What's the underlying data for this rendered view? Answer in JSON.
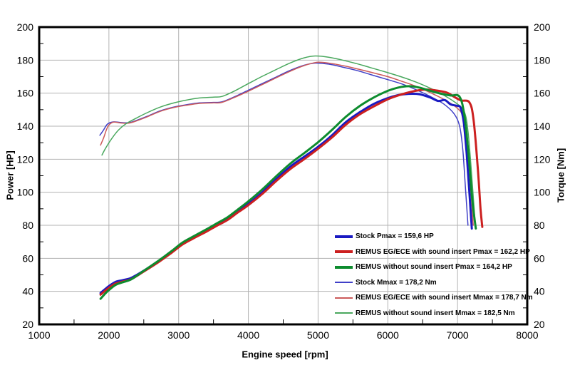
{
  "chart_data": {
    "type": "line",
    "title": "",
    "xlabel": "Engine speed [rpm]",
    "ylabel_left": "Power [HP]",
    "ylabel_right": "Torque [Nm]",
    "xlim": [
      1000,
      8000
    ],
    "ylim": [
      20,
      200
    ],
    "x_ticks": [
      1000,
      2000,
      3000,
      4000,
      5000,
      6000,
      7000,
      8000
    ],
    "y_ticks": [
      20,
      40,
      60,
      80,
      100,
      120,
      140,
      160,
      180,
      200
    ],
    "x_minor_step": 500,
    "y_minor_step": 10,
    "grid": true,
    "grid_color": "#b3b3b3",
    "border_color": "#000000",
    "legend_position": "inside-bottom-right",
    "series": [
      {
        "name": "Stock Pmax = 159,6 HP",
        "kind": "power",
        "unit": "HP",
        "color": "#1a1ac2",
        "width": 3,
        "points": [
          [
            1880,
            39
          ],
          [
            1950,
            41.5
          ],
          [
            2020,
            43.8
          ],
          [
            2100,
            45.8
          ],
          [
            2200,
            46.8
          ],
          [
            2320,
            48.2
          ],
          [
            2500,
            52.5
          ],
          [
            2700,
            58
          ],
          [
            2900,
            64
          ],
          [
            3050,
            69
          ],
          [
            3200,
            72.5
          ],
          [
            3400,
            77
          ],
          [
            3550,
            80.5
          ],
          [
            3700,
            84
          ],
          [
            3850,
            88.5
          ],
          [
            4000,
            93
          ],
          [
            4200,
            100
          ],
          [
            4400,
            108
          ],
          [
            4600,
            115.5
          ],
          [
            4800,
            121.5
          ],
          [
            5000,
            127.5
          ],
          [
            5200,
            134.5
          ],
          [
            5400,
            142.5
          ],
          [
            5600,
            148.5
          ],
          [
            5800,
            153.5
          ],
          [
            6000,
            157
          ],
          [
            6150,
            158.8
          ],
          [
            6300,
            159.6
          ],
          [
            6450,
            159.4
          ],
          [
            6600,
            157.5
          ],
          [
            6720,
            155.3
          ],
          [
            6820,
            155.8
          ],
          [
            6900,
            153.2
          ],
          [
            7000,
            152.3
          ],
          [
            7045,
            151
          ],
          [
            7090,
            142
          ],
          [
            7130,
            124
          ],
          [
            7165,
            103
          ],
          [
            7205,
            78
          ]
        ]
      },
      {
        "name": "REMUS EG/ECE with sound insert Pmax = 162,2 HP",
        "kind": "power",
        "unit": "HP",
        "color": "#cc2020",
        "width": 3,
        "points": [
          [
            1880,
            38
          ],
          [
            1950,
            40.5
          ],
          [
            2020,
            42.8
          ],
          [
            2100,
            44.8
          ],
          [
            2200,
            45.9
          ],
          [
            2320,
            47.4
          ],
          [
            2500,
            52
          ],
          [
            2700,
            57.4
          ],
          [
            2900,
            63.4
          ],
          [
            3050,
            68.2
          ],
          [
            3200,
            71.8
          ],
          [
            3400,
            76.2
          ],
          [
            3550,
            79.8
          ],
          [
            3700,
            83.2
          ],
          [
            3850,
            87.8
          ],
          [
            4000,
            92.2
          ],
          [
            4200,
            99
          ],
          [
            4400,
            106.8
          ],
          [
            4600,
            114
          ],
          [
            4800,
            120
          ],
          [
            5000,
            126.3
          ],
          [
            5200,
            133.2
          ],
          [
            5400,
            141
          ],
          [
            5600,
            147.2
          ],
          [
            5800,
            152
          ],
          [
            6000,
            156.3
          ],
          [
            6200,
            159.3
          ],
          [
            6400,
            161.4
          ],
          [
            6550,
            162.2
          ],
          [
            6700,
            161.6
          ],
          [
            6850,
            160.3
          ],
          [
            6950,
            157.8
          ],
          [
            7050,
            155.6
          ],
          [
            7170,
            154.4
          ],
          [
            7230,
            144
          ],
          [
            7290,
            115
          ],
          [
            7330,
            90
          ],
          [
            7355,
            79
          ]
        ]
      },
      {
        "name": "REMUS without sound insert Pmax = 164,2 HP",
        "kind": "power",
        "unit": "HP",
        "color": "#0d8c2e",
        "width": 3,
        "points": [
          [
            1880,
            35.5
          ],
          [
            1950,
            38.8
          ],
          [
            2020,
            41.5
          ],
          [
            2100,
            44
          ],
          [
            2200,
            45.5
          ],
          [
            2320,
            47.3
          ],
          [
            2500,
            52.4
          ],
          [
            2700,
            58.2
          ],
          [
            2900,
            64.4
          ],
          [
            3050,
            69.4
          ],
          [
            3200,
            73
          ],
          [
            3400,
            77.6
          ],
          [
            3550,
            81.2
          ],
          [
            3700,
            84.8
          ],
          [
            3850,
            89.6
          ],
          [
            4000,
            94.5
          ],
          [
            4200,
            101.7
          ],
          [
            4400,
            109.7
          ],
          [
            4600,
            117.3
          ],
          [
            4800,
            123.7
          ],
          [
            5000,
            130.3
          ],
          [
            5200,
            137.8
          ],
          [
            5400,
            145.8
          ],
          [
            5600,
            152.3
          ],
          [
            5800,
            157.4
          ],
          [
            6000,
            161.4
          ],
          [
            6150,
            163.4
          ],
          [
            6300,
            164.2
          ],
          [
            6450,
            163.4
          ],
          [
            6600,
            161.5
          ],
          [
            6750,
            159.8
          ],
          [
            6900,
            158.6
          ],
          [
            7030,
            157.8
          ],
          [
            7100,
            146
          ],
          [
            7160,
            122
          ],
          [
            7210,
            96
          ],
          [
            7262,
            78
          ]
        ]
      },
      {
        "name": "Stock Mmax = 178,2 Nm",
        "kind": "torque",
        "unit": "Nm",
        "color": "#4040c8",
        "width": 1.5,
        "points": [
          [
            1870,
            134.5
          ],
          [
            1920,
            137.5
          ],
          [
            1980,
            141.3
          ],
          [
            2060,
            142.6
          ],
          [
            2160,
            142.3
          ],
          [
            2280,
            142.1
          ],
          [
            2400,
            143.6
          ],
          [
            2550,
            146
          ],
          [
            2750,
            149.5
          ],
          [
            2950,
            151.8
          ],
          [
            3100,
            152.9
          ],
          [
            3300,
            154.1
          ],
          [
            3500,
            154.4
          ],
          [
            3620,
            154.7
          ],
          [
            3800,
            157.8
          ],
          [
            4000,
            161.8
          ],
          [
            4200,
            165.8
          ],
          [
            4400,
            169.8
          ],
          [
            4600,
            173.8
          ],
          [
            4800,
            176.9
          ],
          [
            4960,
            178.2
          ],
          [
            5150,
            177.6
          ],
          [
            5350,
            175.8
          ],
          [
            5550,
            173.8
          ],
          [
            5750,
            171.3
          ],
          [
            6000,
            168.2
          ],
          [
            6200,
            165.6
          ],
          [
            6400,
            162.2
          ],
          [
            6600,
            158.2
          ],
          [
            6800,
            153.5
          ],
          [
            6950,
            147.5
          ],
          [
            7030,
            140
          ],
          [
            7075,
            126
          ],
          [
            7110,
            105
          ],
          [
            7150,
            80
          ]
        ]
      },
      {
        "name": "REMUS EG/ECE with sound insert Mmax = 178,7 Nm",
        "kind": "torque",
        "unit": "Nm",
        "color": "#cc5a5a",
        "width": 1.5,
        "points": [
          [
            1880,
            128.5
          ],
          [
            1925,
            133
          ],
          [
            1985,
            139.8
          ],
          [
            2060,
            142.4
          ],
          [
            2160,
            142
          ],
          [
            2280,
            141.8
          ],
          [
            2400,
            143.3
          ],
          [
            2550,
            145.7
          ],
          [
            2750,
            149.2
          ],
          [
            2950,
            151.5
          ],
          [
            3100,
            152.6
          ],
          [
            3300,
            153.8
          ],
          [
            3500,
            154.1
          ],
          [
            3620,
            154.4
          ],
          [
            3800,
            157.4
          ],
          [
            4000,
            161.2
          ],
          [
            4200,
            165.2
          ],
          [
            4400,
            169.3
          ],
          [
            4600,
            173.3
          ],
          [
            4800,
            176.7
          ],
          [
            5000,
            178.7
          ],
          [
            5200,
            177.9
          ],
          [
            5400,
            176.3
          ],
          [
            5600,
            174.3
          ],
          [
            5800,
            172.2
          ],
          [
            6000,
            170
          ],
          [
            6200,
            167.2
          ],
          [
            6400,
            164.2
          ],
          [
            6600,
            160.5
          ],
          [
            6800,
            156.3
          ],
          [
            7000,
            150.8
          ],
          [
            7090,
            144.5
          ],
          [
            7140,
            130
          ],
          [
            7185,
            105
          ],
          [
            7225,
            80
          ]
        ]
      },
      {
        "name": "REMUS without sound insert Mmax = 182,5 Nm",
        "kind": "torque",
        "unit": "Nm",
        "color": "#4aa85e",
        "width": 1.5,
        "points": [
          [
            1900,
            122.5
          ],
          [
            1950,
            126.5
          ],
          [
            2040,
            132.5
          ],
          [
            2140,
            137.8
          ],
          [
            2250,
            141.6
          ],
          [
            2380,
            144.6
          ],
          [
            2550,
            148.2
          ],
          [
            2750,
            151.8
          ],
          [
            2950,
            154.3
          ],
          [
            3100,
            155.7
          ],
          [
            3300,
            157.1
          ],
          [
            3500,
            157.6
          ],
          [
            3620,
            158
          ],
          [
            3800,
            161.3
          ],
          [
            4000,
            165.8
          ],
          [
            4200,
            170.2
          ],
          [
            4400,
            174.3
          ],
          [
            4600,
            178.3
          ],
          [
            4800,
            181.4
          ],
          [
            4960,
            182.5
          ],
          [
            5150,
            181.8
          ],
          [
            5350,
            180
          ],
          [
            5550,
            177.9
          ],
          [
            5750,
            175.5
          ],
          [
            6000,
            172.4
          ],
          [
            6200,
            169.8
          ],
          [
            6400,
            166.8
          ],
          [
            6600,
            163.2
          ],
          [
            6800,
            158.8
          ],
          [
            7000,
            153.4
          ],
          [
            7100,
            148.5
          ],
          [
            7150,
            137
          ],
          [
            7200,
            112
          ],
          [
            7255,
            80
          ]
        ]
      }
    ]
  }
}
